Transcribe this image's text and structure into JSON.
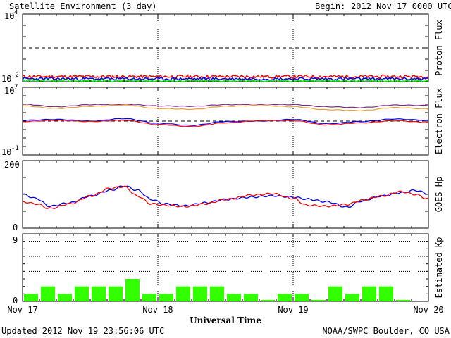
{
  "title": "Satellite Environment (3 day)",
  "begin_label": "Begin:",
  "begin_value": "2012 Nov 17 0000 UTC",
  "updated": "Updated 2012 Nov 19 23:56:06 UTC",
  "credit": "NOAA/SWPC Boulder, CO USA",
  "x_axis_title": "Universal Time",
  "x_tick_labels": [
    "Nov 17",
    "Nov 18",
    "Nov 19",
    "Nov 20"
  ],
  "colors": {
    "red": "#ff0000",
    "blue": "#0000ff",
    "green": "#00ee00",
    "orange": "#e8a030",
    "purple": "#7a2a8a",
    "kp_bar": "#33ff00",
    "frame": "#000000"
  },
  "chart_data": [
    {
      "type": "line",
      "panel": "proton-flux",
      "ylabel": "Proton Flux",
      "scale": "log",
      "ylim_exp": [
        -2,
        4
      ],
      "ytick_labels": [
        {
          "base": "10",
          "exp": "4"
        },
        {
          "base": "10",
          "exp": "-2"
        }
      ],
      "threshold_exp": 1,
      "x_range_days": [
        0,
        3
      ],
      "series": [
        {
          "color_key": "red",
          "approx_exp": -1.55,
          "noise": 0.14,
          "seed": 11
        },
        {
          "color_key": "blue",
          "approx_exp": -1.75,
          "noise": 0.12,
          "seed": 23
        },
        {
          "color_key": "green",
          "approx_exp": -1.92,
          "noise": 0.09,
          "seed": 37
        }
      ]
    },
    {
      "type": "line",
      "panel": "electron-flux",
      "ylabel": "Electron Flux",
      "scale": "log",
      "ylim_exp": [
        -1,
        7
      ],
      "ytick_labels": [
        {
          "base": "10",
          "exp": "7"
        },
        {
          "base": "10",
          "exp": "-1"
        }
      ],
      "threshold_exp": 3,
      "x": [
        0,
        0.25,
        0.5,
        0.75,
        1.0,
        1.25,
        1.5,
        1.75,
        2.0,
        2.25,
        2.5,
        2.75,
        3.0
      ],
      "series": [
        {
          "color_key": "purple",
          "values_exp": [
            5.0,
            4.7,
            4.95,
            5.0,
            4.8,
            4.75,
            4.95,
            5.0,
            4.95,
            4.7,
            4.6,
            4.9,
            4.85
          ]
        },
        {
          "color_key": "orange",
          "values_exp": [
            4.8,
            4.5,
            4.75,
            4.9,
            4.5,
            4.4,
            4.75,
            4.85,
            4.7,
            4.35,
            4.25,
            4.6,
            4.45
          ]
        },
        {
          "color_key": "blue",
          "values_exp": [
            3.1,
            3.2,
            3.0,
            3.3,
            2.75,
            2.5,
            2.95,
            3.0,
            3.2,
            2.7,
            2.95,
            3.25,
            3.1
          ]
        },
        {
          "color_key": "red",
          "values_exp": [
            2.95,
            3.1,
            2.95,
            3.1,
            2.6,
            2.35,
            2.8,
            3.05,
            3.05,
            2.55,
            2.8,
            3.05,
            2.85
          ]
        }
      ]
    },
    {
      "type": "line",
      "panel": "goes-hp",
      "ylabel": "GOES Hp",
      "ylim": [
        0,
        200
      ],
      "ytick_labels": [
        "200",
        "0"
      ],
      "x": [
        0,
        0.1,
        0.2,
        0.35,
        0.5,
        0.65,
        0.75,
        0.85,
        0.95,
        1.05,
        1.2,
        1.35,
        1.5,
        1.7,
        1.85,
        2.0,
        2.1,
        2.25,
        2.4,
        2.5,
        2.65,
        2.8,
        2.9,
        3.0
      ],
      "series": [
        {
          "color_key": "blue",
          "values": [
            100,
            88,
            65,
            75,
            95,
            112,
            125,
            112,
            85,
            72,
            66,
            75,
            85,
            92,
            96,
            92,
            86,
            78,
            62,
            80,
            95,
            105,
            112,
            102
          ]
        },
        {
          "color_key": "red",
          "values": [
            78,
            72,
            58,
            72,
            95,
            118,
            123,
            95,
            72,
            68,
            64,
            72,
            85,
            98,
            102,
            88,
            68,
            65,
            70,
            82,
            95,
            108,
            100,
            86
          ]
        }
      ]
    },
    {
      "type": "bar",
      "panel": "estimated-kp",
      "ylabel": "Estimated Kp",
      "ylim": [
        0,
        9
      ],
      "ytick_labels": [
        "9",
        "0"
      ],
      "grid_y": [
        4,
        6,
        8
      ],
      "bar_width_days": 0.125,
      "values": [
        1,
        2,
        1,
        2,
        2,
        2,
        3,
        1,
        1,
        2,
        2,
        2,
        1,
        1,
        0,
        1,
        1,
        0,
        2,
        1,
        2,
        2,
        0
      ]
    }
  ]
}
